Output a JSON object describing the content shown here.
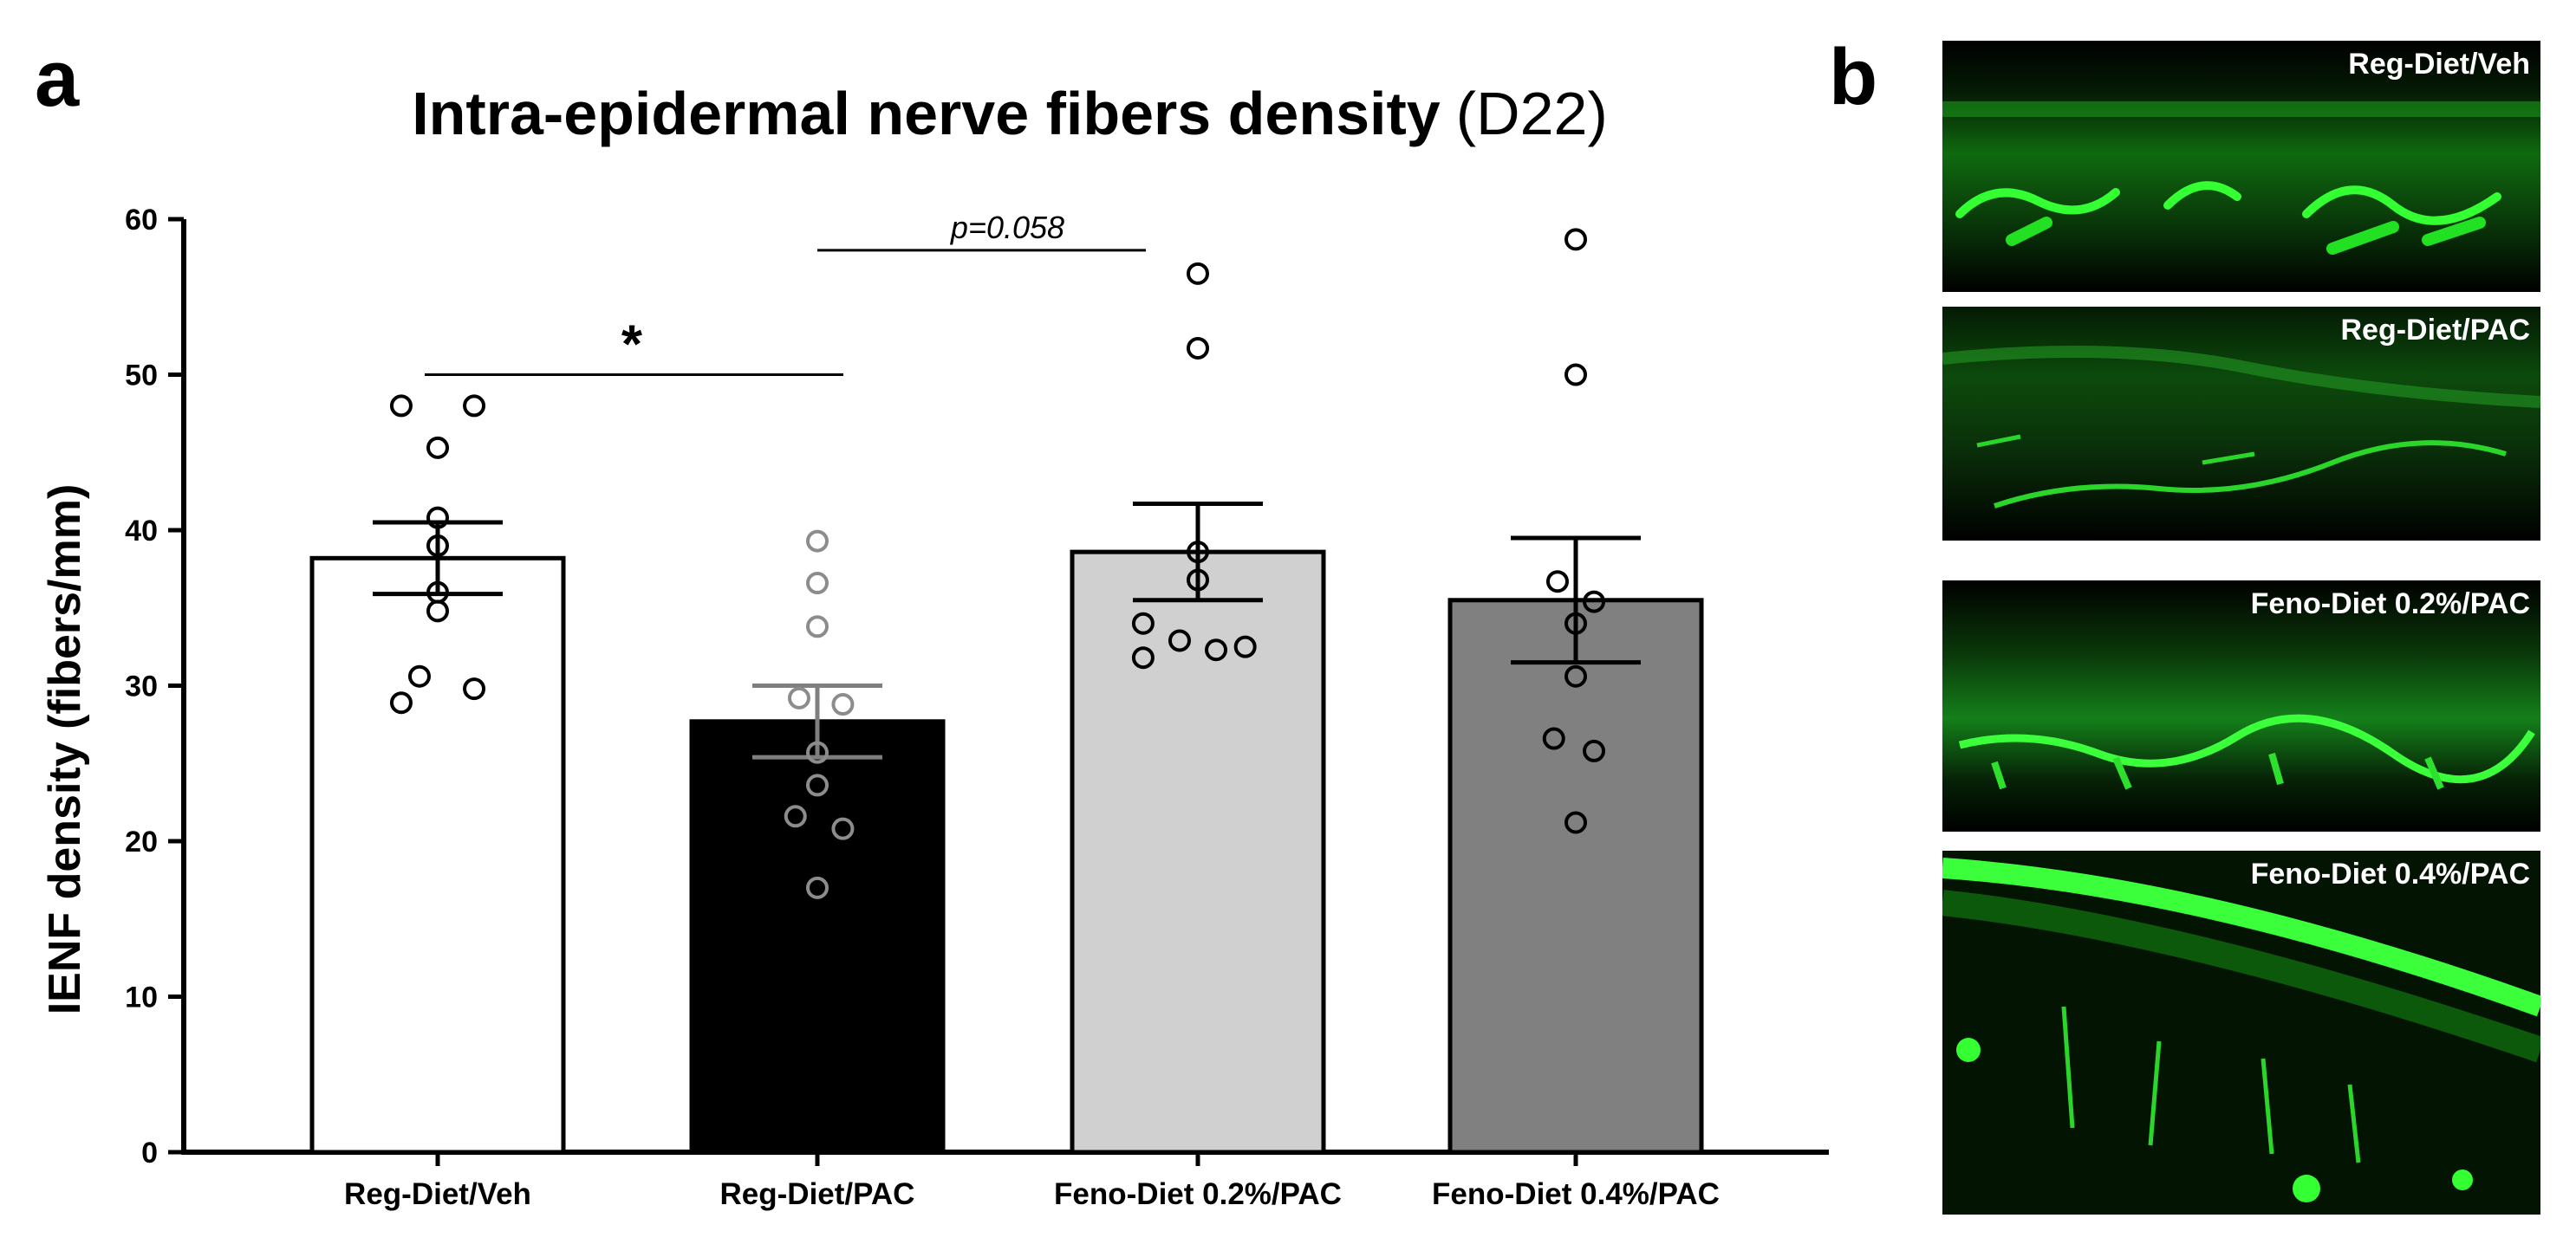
{
  "figure": {
    "panel_a_letter": "a",
    "panel_b_letter": "b"
  },
  "chart_data": {
    "type": "bar",
    "title_main": "Intra-epidermal nerve fibers density",
    "title_suffix": "(D22)",
    "xlabel": "",
    "ylabel": "IENF density (fibers/mm)",
    "ylim": [
      0,
      60
    ],
    "yticks": [
      0,
      10,
      20,
      30,
      40,
      50,
      60
    ],
    "categories": [
      "Reg-Diet/Veh",
      "Reg-Diet/PAC",
      "Feno-Diet 0.2%/PAC",
      "Feno-Diet 0.4%/PAC"
    ],
    "means": [
      38.2,
      27.7,
      38.6,
      35.5
    ],
    "sem": [
      2.3,
      2.3,
      3.1,
      4.0
    ],
    "bar_colors": [
      "#ffffff",
      "#000000",
      "#d0d0d0",
      "#808080"
    ],
    "point_colors": [
      "#000000",
      "#8c8c8c",
      "#000000",
      "#000000"
    ],
    "error_colors": [
      "#000000",
      "#7f7f7f",
      "#000000",
      "#000000"
    ],
    "points": [
      [
        [
          -0.1,
          48.0
        ],
        [
          0.1,
          48.0
        ],
        [
          0.0,
          45.3
        ],
        [
          0.0,
          40.8
        ],
        [
          0.0,
          39.0
        ],
        [
          0.0,
          36.0
        ],
        [
          0.0,
          34.8
        ],
        [
          -0.05,
          30.6
        ],
        [
          0.1,
          29.8
        ],
        [
          -0.1,
          28.9
        ]
      ],
      [
        [
          0.0,
          39.3
        ],
        [
          0.0,
          36.6
        ],
        [
          0.0,
          33.8
        ],
        [
          -0.05,
          29.2
        ],
        [
          0.07,
          28.8
        ],
        [
          0.0,
          25.7
        ],
        [
          0.0,
          23.6
        ],
        [
          -0.06,
          21.6
        ],
        [
          0.07,
          20.8
        ],
        [
          0.0,
          17.0
        ]
      ],
      [
        [
          0.0,
          56.5
        ],
        [
          0.0,
          51.7
        ],
        [
          0.0,
          38.6
        ],
        [
          0.0,
          36.8
        ],
        [
          -0.15,
          34.0
        ],
        [
          -0.05,
          32.9
        ],
        [
          0.05,
          32.3
        ],
        [
          0.13,
          32.5
        ],
        [
          -0.15,
          31.8
        ]
      ],
      [
        [
          0.0,
          58.7
        ],
        [
          0.0,
          50.0
        ],
        [
          -0.05,
          36.7
        ],
        [
          0.05,
          35.4
        ],
        [
          0.0,
          34.0
        ],
        [
          0.0,
          30.6
        ],
        [
          -0.06,
          26.6
        ],
        [
          0.05,
          25.8
        ],
        [
          0.0,
          21.2
        ]
      ]
    ],
    "significance": [
      {
        "from": 0,
        "to": 1,
        "y": 50.0,
        "label": "*",
        "style": "star"
      },
      {
        "from": 1,
        "to": 2,
        "y": 58.0,
        "label": "p=0.058",
        "style": "italic"
      }
    ]
  },
  "panel_b": {
    "images": [
      {
        "label": "Reg-Diet/Veh"
      },
      {
        "label": "Reg-Diet/PAC"
      },
      {
        "label": "Feno-Diet 0.2%/PAC"
      },
      {
        "label": "Feno-Diet 0.4%/PAC"
      }
    ]
  }
}
